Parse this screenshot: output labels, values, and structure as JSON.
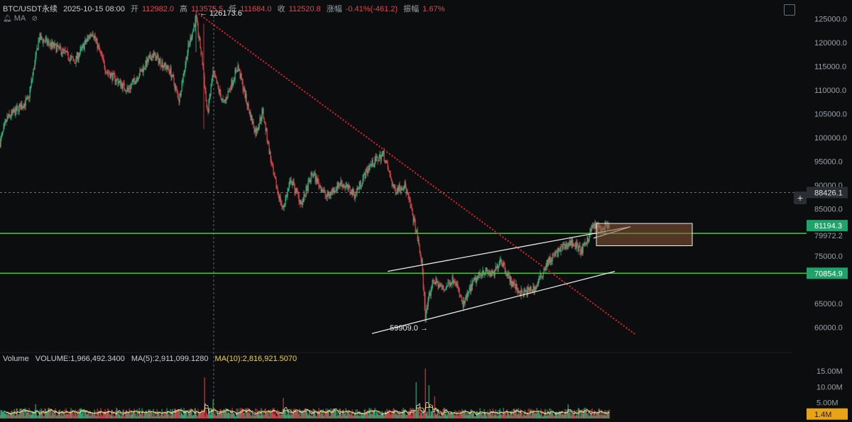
{
  "header": {
    "symbol": "BTC/USDT永续",
    "datetime": "2025-10-15 08:00",
    "open_label": "开",
    "open_value": "112982.0",
    "high_label": "高",
    "high_value": "113575.5",
    "low_label": "低",
    "low_value": "111684.0",
    "close_label": "收",
    "close_value": "112520.8",
    "change_label": "涨幅",
    "change_value": "-0.41%(-461.2)",
    "amplitude_label": "振幅",
    "amplitude_value": "1.67%",
    "ma_label": "MA"
  },
  "volume_header": {
    "label": "Volume",
    "volume": "VOLUME:1,966,492.3400",
    "ma5": "MA(5):2,911,099.1280",
    "ma10": "MA(10):2,816,921.5070"
  },
  "colors": {
    "up": "#2ebd85",
    "down": "#e0464d",
    "support": "#46c23a",
    "trendline": "#e0252e",
    "channel": "#e8e8e8",
    "zone": "#8a5a3a",
    "ma5": "#e8e8e8",
    "ma10": "#f0d24a",
    "badge_green": "#1fa36b",
    "badge_vol": "#e8a317"
  },
  "chart_data": {
    "type": "candlestick",
    "x_range_index": [
      0,
      1116
    ],
    "ylim": [
      55000,
      127500
    ],
    "y_ticks": [
      "125000.0",
      "120000.0",
      "115000.0",
      "110000.0",
      "105000.0",
      "100000.0",
      "95000.0",
      "90000.0",
      "85000.0",
      "75000.0",
      "65000.0",
      "60000.0"
    ],
    "y_tick_values": [
      125000,
      120000,
      115000,
      110000,
      105000,
      100000,
      95000,
      90000,
      85000,
      75000,
      65000,
      60000
    ],
    "anchors": [
      {
        "i": 0,
        "p": 99000
      },
      {
        "i": 10,
        "p": 104000
      },
      {
        "i": 40,
        "p": 108000
      },
      {
        "i": 55,
        "p": 121000
      },
      {
        "i": 90,
        "p": 118000
      },
      {
        "i": 105,
        "p": 116000
      },
      {
        "i": 130,
        "p": 122500
      },
      {
        "i": 150,
        "p": 114000
      },
      {
        "i": 180,
        "p": 110000
      },
      {
        "i": 215,
        "p": 117500
      },
      {
        "i": 240,
        "p": 114000
      },
      {
        "i": 252,
        "p": 108000
      },
      {
        "i": 265,
        "p": 119000
      },
      {
        "i": 276,
        "p": 125200
      },
      {
        "i": 285,
        "p": 116000
      },
      {
        "i": 292,
        "p": 105000
      },
      {
        "i": 300,
        "p": 113500
      },
      {
        "i": 315,
        "p": 107000
      },
      {
        "i": 335,
        "p": 115000
      },
      {
        "i": 350,
        "p": 106000
      },
      {
        "i": 360,
        "p": 101000
      },
      {
        "i": 370,
        "p": 105500
      },
      {
        "i": 385,
        "p": 92000
      },
      {
        "i": 398,
        "p": 85000
      },
      {
        "i": 410,
        "p": 91000
      },
      {
        "i": 425,
        "p": 86000
      },
      {
        "i": 440,
        "p": 92500
      },
      {
        "i": 460,
        "p": 87500
      },
      {
        "i": 480,
        "p": 90500
      },
      {
        "i": 500,
        "p": 88000
      },
      {
        "i": 520,
        "p": 94000
      },
      {
        "i": 540,
        "p": 96500
      },
      {
        "i": 555,
        "p": 89000
      },
      {
        "i": 570,
        "p": 90000
      },
      {
        "i": 578,
        "p": 85500
      },
      {
        "i": 586,
        "p": 80500
      },
      {
        "i": 594,
        "p": 73500
      },
      {
        "i": 599,
        "p": 62500
      },
      {
        "i": 610,
        "p": 70000
      },
      {
        "i": 625,
        "p": 68000
      },
      {
        "i": 640,
        "p": 70500
      },
      {
        "i": 652,
        "p": 64500
      },
      {
        "i": 665,
        "p": 69000
      },
      {
        "i": 680,
        "p": 72000
      },
      {
        "i": 695,
        "p": 71000
      },
      {
        "i": 705,
        "p": 74500
      },
      {
        "i": 720,
        "p": 69500
      },
      {
        "i": 735,
        "p": 67000
      },
      {
        "i": 755,
        "p": 68500
      },
      {
        "i": 770,
        "p": 73500
      },
      {
        "i": 790,
        "p": 76500
      },
      {
        "i": 805,
        "p": 78000
      },
      {
        "i": 820,
        "p": 76000
      },
      {
        "i": 835,
        "p": 81500
      },
      {
        "i": 848,
        "p": 80500
      },
      {
        "i": 858,
        "p": 81200
      }
    ],
    "spikes": [
      {
        "i": 287,
        "low": 101800,
        "high": 124000
      },
      {
        "i": 599,
        "low": 61000,
        "high": 67500
      },
      {
        "i": 276,
        "low": 118000,
        "high": 126173.6
      }
    ],
    "annotations": [
      {
        "text": "← 126173.6",
        "i": 281,
        "price": 126173.6
      },
      {
        "text": "59909.0 →",
        "i": 549,
        "price": 59909.0
      }
    ],
    "horizontal_levels": [
      {
        "label": "81194.3",
        "price": 79800,
        "kind": "support"
      },
      {
        "label": "70854.9",
        "price": 71400,
        "kind": "support"
      },
      {
        "label": "88426.1",
        "price": 88426.1,
        "kind": "crosshair"
      }
    ],
    "hidden_tick": "79972.2",
    "trendline": {
      "from": {
        "i": 276,
        "price": 126500
      },
      "to": {
        "i": 895,
        "price": 58500
      }
    },
    "channel": {
      "upper": {
        "from": {
          "i": 546,
          "price": 71800
        },
        "to": {
          "i": 888,
          "price": 81200
        }
      },
      "lower": {
        "from": {
          "i": 524,
          "price": 58700
        },
        "to": {
          "i": 866,
          "price": 71800
        }
      },
      "mid": {
        "from": {
          "i": 836,
          "price": 78800
        },
        "to": {
          "i": 888,
          "price": 81200
        }
      }
    },
    "zone": {
      "i_from": 840,
      "i_to": 975,
      "price_top": 81900,
      "price_bottom": 77200
    },
    "crosshair_x_index": 301,
    "volume": {
      "ylim_millions": [
        0,
        17.5
      ],
      "y_ticks": [
        "15.00M",
        "10.00M",
        "5.00M"
      ],
      "y_tick_values": [
        15,
        10,
        5
      ],
      "current": "1.4M",
      "spikes": [
        {
          "i": 288,
          "v": 13
        },
        {
          "i": 399,
          "v": 6.5
        },
        {
          "i": 586,
          "v": 11.5
        },
        {
          "i": 599,
          "v": 15.8
        },
        {
          "i": 604,
          "v": 10.5
        },
        {
          "i": 612,
          "v": 7
        },
        {
          "i": 300,
          "v": 6
        },
        {
          "i": 50,
          "v": 4.5
        },
        {
          "i": 800,
          "v": 4.5
        }
      ]
    }
  }
}
